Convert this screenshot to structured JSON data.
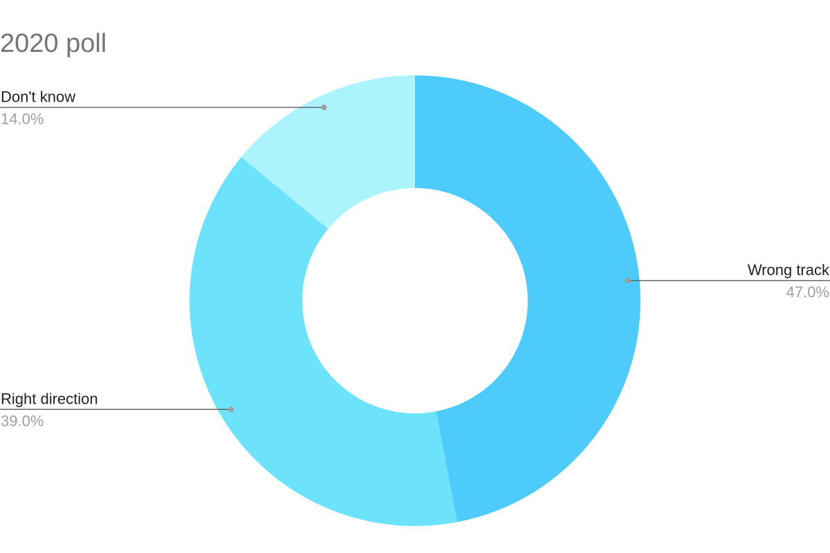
{
  "chart_data": {
    "type": "pie",
    "variant": "donut",
    "title": "2020 poll",
    "slices": [
      {
        "label": "Wrong track",
        "value": 47.0,
        "value_label": "47.0%",
        "color": "#4dcbfb"
      },
      {
        "label": "Right direction",
        "value": 39.0,
        "value_label": "39.0%",
        "color": "#6ce2fb"
      },
      {
        "label": "Don't know",
        "value": 14.0,
        "value_label": "14.0%",
        "color": "#abf3fd"
      }
    ],
    "start_angle": "12 o'clock",
    "direction": "clockwise",
    "legend": "none",
    "title_color": "#757575",
    "label_color": "#222222",
    "percent_color": "#9e9e9e"
  }
}
